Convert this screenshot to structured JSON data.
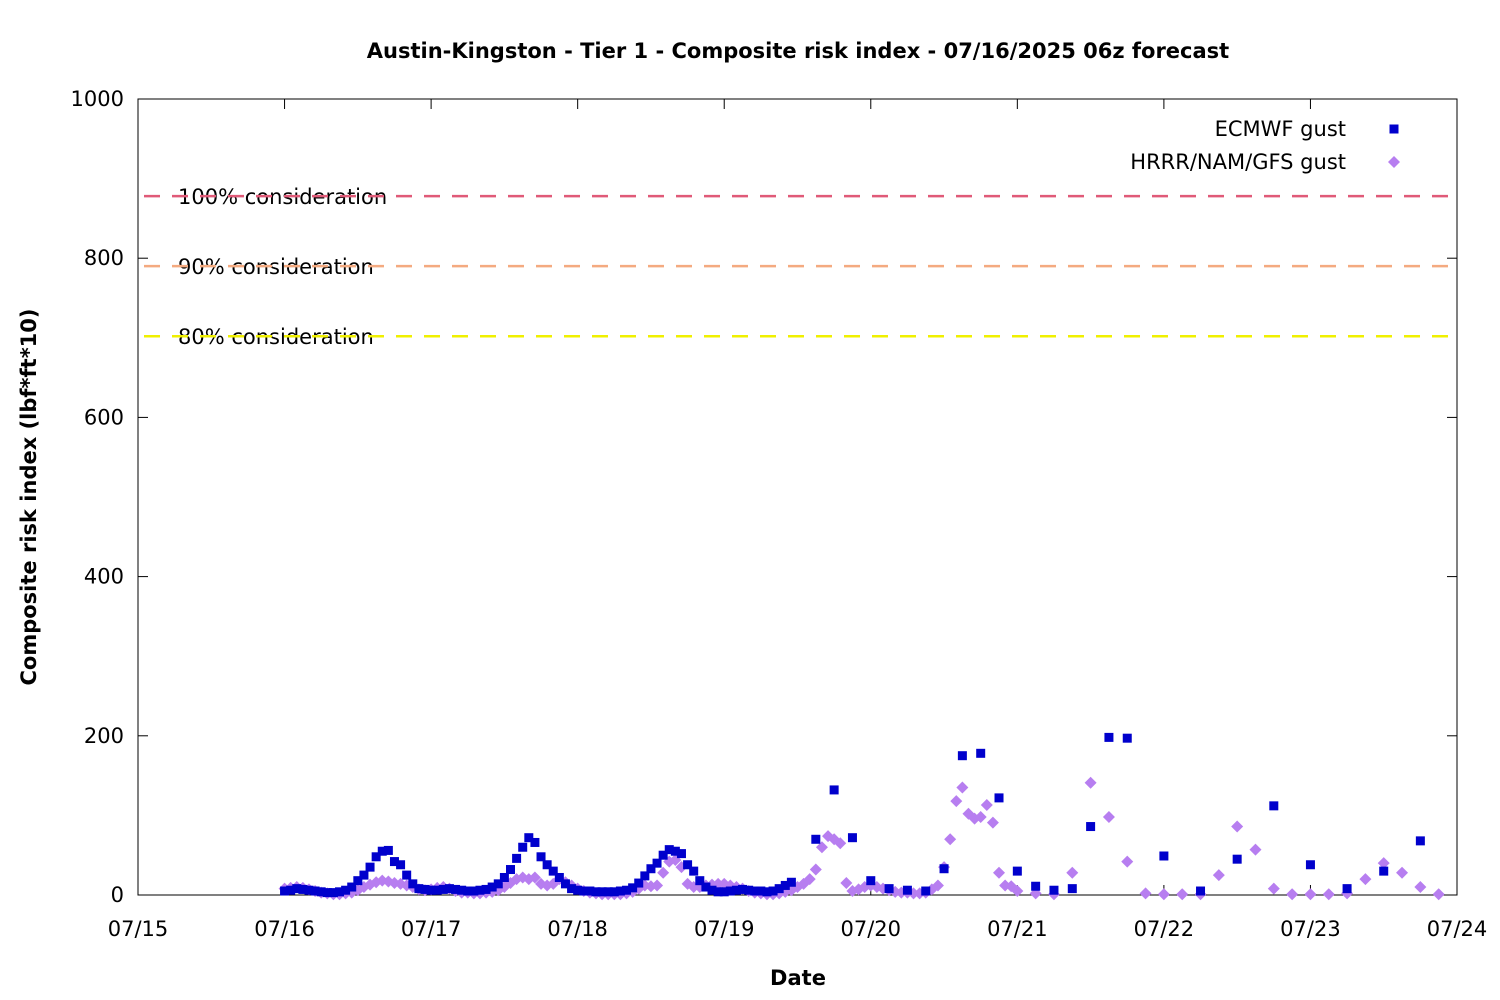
{
  "chart_data": {
    "type": "scatter",
    "title": "Austin-Kingston - Tier 1 - Composite risk index - 07/16/2025 06z forecast",
    "xlabel": "Date",
    "ylabel": "Composite risk index (lbf*ft*10)",
    "xlim": [
      "2025-07-15T00:00",
      "2025-07-24T00:00"
    ],
    "ylim": [
      0,
      1000
    ],
    "x_ticks": [
      "07/15",
      "07/16",
      "07/17",
      "07/18",
      "07/19",
      "07/20",
      "07/21",
      "07/22",
      "07/23",
      "07/24"
    ],
    "y_ticks": [
      0,
      200,
      400,
      600,
      800,
      1000
    ],
    "grid": false,
    "legend_position": "top-right",
    "reference_lines": [
      {
        "label": "100% consideration",
        "value": 878,
        "color": "#e05a78"
      },
      {
        "label": "90% consideration",
        "value": 790,
        "color": "#f4aa80"
      },
      {
        "label": "80% consideration",
        "value": 702,
        "color": "#f0f000"
      }
    ],
    "series": [
      {
        "name": "ECMWF gust",
        "marker": "square",
        "color": "#0000cc",
        "points": [
          [
            "2025-07-16T00:00",
            5
          ],
          [
            "2025-07-16T01:00",
            6
          ],
          [
            "2025-07-16T02:00",
            8
          ],
          [
            "2025-07-16T03:00",
            7
          ],
          [
            "2025-07-16T04:00",
            6
          ],
          [
            "2025-07-16T05:00",
            5
          ],
          [
            "2025-07-16T06:00",
            4
          ],
          [
            "2025-07-16T07:00",
            3
          ],
          [
            "2025-07-16T08:00",
            3
          ],
          [
            "2025-07-16T09:00",
            4
          ],
          [
            "2025-07-16T10:00",
            6
          ],
          [
            "2025-07-16T11:00",
            10
          ],
          [
            "2025-07-16T12:00",
            18
          ],
          [
            "2025-07-16T13:00",
            25
          ],
          [
            "2025-07-16T14:00",
            35
          ],
          [
            "2025-07-16T15:00",
            48
          ],
          [
            "2025-07-16T16:00",
            55
          ],
          [
            "2025-07-16T17:00",
            56
          ],
          [
            "2025-07-16T18:00",
            42
          ],
          [
            "2025-07-16T19:00",
            38
          ],
          [
            "2025-07-16T20:00",
            25
          ],
          [
            "2025-07-16T21:00",
            14
          ],
          [
            "2025-07-16T22:00",
            8
          ],
          [
            "2025-07-16T23:00",
            7
          ],
          [
            "2025-07-17T00:00",
            6
          ],
          [
            "2025-07-17T01:00",
            6
          ],
          [
            "2025-07-17T02:00",
            7
          ],
          [
            "2025-07-17T03:00",
            8
          ],
          [
            "2025-07-17T04:00",
            7
          ],
          [
            "2025-07-17T05:00",
            6
          ],
          [
            "2025-07-17T06:00",
            5
          ],
          [
            "2025-07-17T07:00",
            5
          ],
          [
            "2025-07-17T08:00",
            6
          ],
          [
            "2025-07-17T09:00",
            7
          ],
          [
            "2025-07-17T10:00",
            10
          ],
          [
            "2025-07-17T11:00",
            14
          ],
          [
            "2025-07-17T12:00",
            22
          ],
          [
            "2025-07-17T13:00",
            32
          ],
          [
            "2025-07-17T14:00",
            46
          ],
          [
            "2025-07-17T15:00",
            60
          ],
          [
            "2025-07-17T16:00",
            72
          ],
          [
            "2025-07-17T17:00",
            66
          ],
          [
            "2025-07-17T18:00",
            48
          ],
          [
            "2025-07-17T19:00",
            38
          ],
          [
            "2025-07-17T20:00",
            30
          ],
          [
            "2025-07-17T21:00",
            22
          ],
          [
            "2025-07-17T22:00",
            14
          ],
          [
            "2025-07-17T23:00",
            8
          ],
          [
            "2025-07-18T00:00",
            6
          ],
          [
            "2025-07-18T01:00",
            5
          ],
          [
            "2025-07-18T02:00",
            5
          ],
          [
            "2025-07-18T03:00",
            4
          ],
          [
            "2025-07-18T04:00",
            4
          ],
          [
            "2025-07-18T05:00",
            4
          ],
          [
            "2025-07-18T06:00",
            4
          ],
          [
            "2025-07-18T07:00",
            5
          ],
          [
            "2025-07-18T08:00",
            6
          ],
          [
            "2025-07-18T09:00",
            9
          ],
          [
            "2025-07-18T10:00",
            15
          ],
          [
            "2025-07-18T11:00",
            24
          ],
          [
            "2025-07-18T12:00",
            33
          ],
          [
            "2025-07-18T13:00",
            40
          ],
          [
            "2025-07-18T14:00",
            50
          ],
          [
            "2025-07-18T15:00",
            57
          ],
          [
            "2025-07-18T16:00",
            55
          ],
          [
            "2025-07-18T17:00",
            52
          ],
          [
            "2025-07-18T18:00",
            38
          ],
          [
            "2025-07-18T19:00",
            30
          ],
          [
            "2025-07-18T20:00",
            18
          ],
          [
            "2025-07-18T21:00",
            10
          ],
          [
            "2025-07-18T22:00",
            6
          ],
          [
            "2025-07-18T23:00",
            4
          ],
          [
            "2025-07-19T00:00",
            4
          ],
          [
            "2025-07-19T01:00",
            5
          ],
          [
            "2025-07-19T02:00",
            6
          ],
          [
            "2025-07-19T03:00",
            7
          ],
          [
            "2025-07-19T04:00",
            6
          ],
          [
            "2025-07-19T05:00",
            5
          ],
          [
            "2025-07-19T06:00",
            5
          ],
          [
            "2025-07-19T07:00",
            4
          ],
          [
            "2025-07-19T08:00",
            5
          ],
          [
            "2025-07-19T09:00",
            8
          ],
          [
            "2025-07-19T10:00",
            12
          ],
          [
            "2025-07-19T11:00",
            16
          ],
          [
            "2025-07-19T15:00",
            70
          ],
          [
            "2025-07-19T18:00",
            132
          ],
          [
            "2025-07-19T21:00",
            72
          ],
          [
            "2025-07-20T00:00",
            18
          ],
          [
            "2025-07-20T03:00",
            8
          ],
          [
            "2025-07-20T06:00",
            6
          ],
          [
            "2025-07-20T09:00",
            5
          ],
          [
            "2025-07-20T12:00",
            33
          ],
          [
            "2025-07-20T15:00",
            175
          ],
          [
            "2025-07-20T18:00",
            178
          ],
          [
            "2025-07-20T21:00",
            122
          ],
          [
            "2025-07-21T00:00",
            30
          ],
          [
            "2025-07-21T03:00",
            11
          ],
          [
            "2025-07-21T06:00",
            6
          ],
          [
            "2025-07-21T09:00",
            8
          ],
          [
            "2025-07-21T12:00",
            86
          ],
          [
            "2025-07-21T15:00",
            198
          ],
          [
            "2025-07-21T18:00",
            197
          ],
          [
            "2025-07-22T00:00",
            49
          ],
          [
            "2025-07-22T06:00",
            5
          ],
          [
            "2025-07-22T12:00",
            45
          ],
          [
            "2025-07-22T18:00",
            112
          ],
          [
            "2025-07-23T00:00",
            38
          ],
          [
            "2025-07-23T06:00",
            8
          ],
          [
            "2025-07-23T12:00",
            30
          ],
          [
            "2025-07-23T18:00",
            68
          ]
        ]
      },
      {
        "name": "HRRR/NAM/GFS gust",
        "marker": "diamond",
        "color": "#b77ef0",
        "points": [
          [
            "2025-07-16T00:00",
            8
          ],
          [
            "2025-07-16T01:00",
            9
          ],
          [
            "2025-07-16T02:00",
            10
          ],
          [
            "2025-07-16T03:00",
            9
          ],
          [
            "2025-07-16T04:00",
            7
          ],
          [
            "2025-07-16T05:00",
            5
          ],
          [
            "2025-07-16T06:00",
            3
          ],
          [
            "2025-07-16T07:00",
            2
          ],
          [
            "2025-07-16T08:00",
            1
          ],
          [
            "2025-07-16T09:00",
            1
          ],
          [
            "2025-07-16T10:00",
            2
          ],
          [
            "2025-07-16T11:00",
            3
          ],
          [
            "2025-07-16T12:00",
            6
          ],
          [
            "2025-07-16T13:00",
            10
          ],
          [
            "2025-07-16T14:00",
            13
          ],
          [
            "2025-07-16T15:00",
            16
          ],
          [
            "2025-07-16T16:00",
            18
          ],
          [
            "2025-07-16T17:00",
            17
          ],
          [
            "2025-07-16T18:00",
            15
          ],
          [
            "2025-07-16T19:00",
            14
          ],
          [
            "2025-07-16T20:00",
            12
          ],
          [
            "2025-07-16T21:00",
            10
          ],
          [
            "2025-07-16T22:00",
            7
          ],
          [
            "2025-07-16T23:00",
            6
          ],
          [
            "2025-07-17T00:00",
            7
          ],
          [
            "2025-07-17T01:00",
            9
          ],
          [
            "2025-07-17T02:00",
            10
          ],
          [
            "2025-07-17T03:00",
            8
          ],
          [
            "2025-07-17T04:00",
            5
          ],
          [
            "2025-07-17T05:00",
            3
          ],
          [
            "2025-07-17T06:00",
            3
          ],
          [
            "2025-07-17T07:00",
            2
          ],
          [
            "2025-07-17T08:00",
            2
          ],
          [
            "2025-07-17T09:00",
            3
          ],
          [
            "2025-07-17T10:00",
            4
          ],
          [
            "2025-07-17T11:00",
            6
          ],
          [
            "2025-07-17T12:00",
            10
          ],
          [
            "2025-07-17T13:00",
            15
          ],
          [
            "2025-07-17T14:00",
            20
          ],
          [
            "2025-07-17T15:00",
            22
          ],
          [
            "2025-07-17T16:00",
            20
          ],
          [
            "2025-07-17T17:00",
            22
          ],
          [
            "2025-07-17T18:00",
            14
          ],
          [
            "2025-07-17T19:00",
            12
          ],
          [
            "2025-07-17T20:00",
            14
          ],
          [
            "2025-07-17T21:00",
            20
          ],
          [
            "2025-07-17T22:00",
            16
          ],
          [
            "2025-07-17T23:00",
            12
          ],
          [
            "2025-07-18T00:00",
            8
          ],
          [
            "2025-07-18T01:00",
            5
          ],
          [
            "2025-07-18T02:00",
            3
          ],
          [
            "2025-07-18T03:00",
            2
          ],
          [
            "2025-07-18T04:00",
            1
          ],
          [
            "2025-07-18T05:00",
            1
          ],
          [
            "2025-07-18T06:00",
            1
          ],
          [
            "2025-07-18T07:00",
            1
          ],
          [
            "2025-07-18T08:00",
            2
          ],
          [
            "2025-07-18T09:00",
            4
          ],
          [
            "2025-07-18T10:00",
            8
          ],
          [
            "2025-07-18T11:00",
            12
          ],
          [
            "2025-07-18T12:00",
            11
          ],
          [
            "2025-07-18T13:00",
            12
          ],
          [
            "2025-07-18T14:00",
            28
          ],
          [
            "2025-07-18T15:00",
            42
          ],
          [
            "2025-07-18T16:00",
            44
          ],
          [
            "2025-07-18T17:00",
            35
          ],
          [
            "2025-07-18T18:00",
            14
          ],
          [
            "2025-07-18T19:00",
            10
          ],
          [
            "2025-07-18T20:00",
            10
          ],
          [
            "2025-07-18T21:00",
            12
          ],
          [
            "2025-07-18T22:00",
            13
          ],
          [
            "2025-07-18T23:00",
            14
          ],
          [
            "2025-07-19T00:00",
            14
          ],
          [
            "2025-07-19T01:00",
            12
          ],
          [
            "2025-07-19T02:00",
            10
          ],
          [
            "2025-07-19T03:00",
            8
          ],
          [
            "2025-07-19T04:00",
            5
          ],
          [
            "2025-07-19T05:00",
            3
          ],
          [
            "2025-07-19T06:00",
            2
          ],
          [
            "2025-07-19T07:00",
            1
          ],
          [
            "2025-07-19T08:00",
            1
          ],
          [
            "2025-07-19T09:00",
            2
          ],
          [
            "2025-07-19T10:00",
            4
          ],
          [
            "2025-07-19T11:00",
            6
          ],
          [
            "2025-07-19T12:00",
            10
          ],
          [
            "2025-07-19T13:00",
            14
          ],
          [
            "2025-07-19T14:00",
            20
          ],
          [
            "2025-07-19T15:00",
            32
          ],
          [
            "2025-07-19T16:00",
            60
          ],
          [
            "2025-07-19T17:00",
            74
          ],
          [
            "2025-07-19T18:00",
            70
          ],
          [
            "2025-07-19T19:00",
            65
          ],
          [
            "2025-07-19T20:00",
            15
          ],
          [
            "2025-07-19T21:00",
            5
          ],
          [
            "2025-07-19T22:00",
            7
          ],
          [
            "2025-07-19T23:00",
            10
          ],
          [
            "2025-07-20T00:00",
            12
          ],
          [
            "2025-07-20T01:00",
            10
          ],
          [
            "2025-07-20T02:00",
            8
          ],
          [
            "2025-07-20T03:00",
            6
          ],
          [
            "2025-07-20T04:00",
            4
          ],
          [
            "2025-07-20T05:00",
            3
          ],
          [
            "2025-07-20T06:00",
            3
          ],
          [
            "2025-07-20T07:00",
            2
          ],
          [
            "2025-07-20T08:00",
            2
          ],
          [
            "2025-07-20T09:00",
            3
          ],
          [
            "2025-07-20T10:00",
            7
          ],
          [
            "2025-07-20T11:00",
            12
          ],
          [
            "2025-07-20T12:00",
            35
          ],
          [
            "2025-07-20T13:00",
            70
          ],
          [
            "2025-07-20T14:00",
            118
          ],
          [
            "2025-07-20T15:00",
            135
          ],
          [
            "2025-07-20T16:00",
            102
          ],
          [
            "2025-07-20T17:00",
            96
          ],
          [
            "2025-07-20T18:00",
            98
          ],
          [
            "2025-07-20T19:00",
            113
          ],
          [
            "2025-07-20T20:00",
            91
          ],
          [
            "2025-07-20T21:00",
            28
          ],
          [
            "2025-07-20T22:00",
            12
          ],
          [
            "2025-07-20T23:00",
            11
          ],
          [
            "2025-07-21T00:00",
            5
          ],
          [
            "2025-07-21T03:00",
            2
          ],
          [
            "2025-07-21T06:00",
            1
          ],
          [
            "2025-07-21T09:00",
            28
          ],
          [
            "2025-07-21T12:00",
            141
          ],
          [
            "2025-07-21T15:00",
            98
          ],
          [
            "2025-07-21T18:00",
            42
          ],
          [
            "2025-07-21T21:00",
            2
          ],
          [
            "2025-07-22T00:00",
            1
          ],
          [
            "2025-07-22T03:00",
            1
          ],
          [
            "2025-07-22T06:00",
            1
          ],
          [
            "2025-07-22T09:00",
            25
          ],
          [
            "2025-07-22T12:00",
            86
          ],
          [
            "2025-07-22T15:00",
            57
          ],
          [
            "2025-07-22T18:00",
            8
          ],
          [
            "2025-07-22T21:00",
            1
          ],
          [
            "2025-07-23T00:00",
            1
          ],
          [
            "2025-07-23T03:00",
            1
          ],
          [
            "2025-07-23T06:00",
            2
          ],
          [
            "2025-07-23T09:00",
            20
          ],
          [
            "2025-07-23T12:00",
            40
          ],
          [
            "2025-07-23T15:00",
            28
          ],
          [
            "2025-07-23T18:00",
            10
          ],
          [
            "2025-07-23T21:00",
            1
          ]
        ]
      }
    ]
  }
}
